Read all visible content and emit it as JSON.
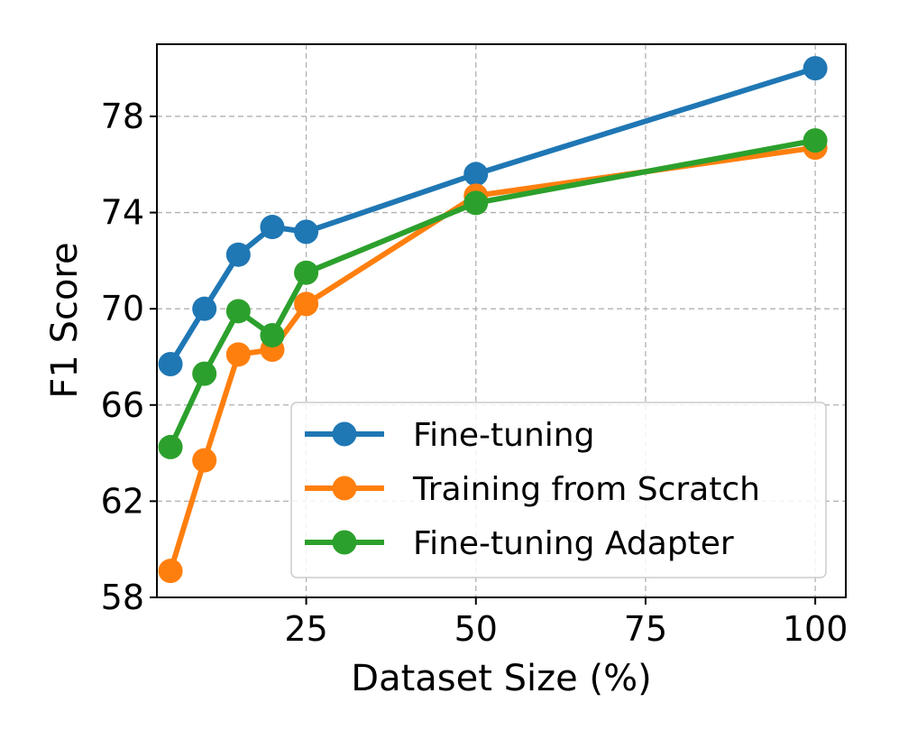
{
  "chart_data": {
    "type": "line",
    "title": "",
    "xlabel": "Dataset Size (%)",
    "ylabel": "F1 Score",
    "xlim": [
      3,
      104.5
    ],
    "ylim": [
      58,
      81
    ],
    "xticks": [
      25,
      50,
      75,
      100
    ],
    "yticks": [
      58,
      62,
      66,
      70,
      74,
      78
    ],
    "grid": true,
    "legend_position": "lower-right",
    "series": [
      {
        "name": "Fine-tuning",
        "color": "#1f77b4",
        "x": [
          5,
          10,
          15,
          20,
          25,
          50,
          100
        ],
        "y": [
          67.7,
          70.0,
          72.25,
          73.4,
          73.2,
          75.6,
          80.0
        ]
      },
      {
        "name": "Training from Scratch",
        "color": "#ff7f0e",
        "x": [
          5,
          10,
          15,
          20,
          25,
          50,
          100
        ],
        "y": [
          59.1,
          63.7,
          68.1,
          68.3,
          70.2,
          74.7,
          76.7
        ]
      },
      {
        "name": "Fine-tuning Adapter",
        "color": "#2ca02c",
        "x": [
          5,
          10,
          15,
          20,
          25,
          50,
          100
        ],
        "y": [
          64.25,
          67.3,
          69.9,
          68.9,
          71.5,
          74.4,
          77.0
        ]
      }
    ]
  }
}
